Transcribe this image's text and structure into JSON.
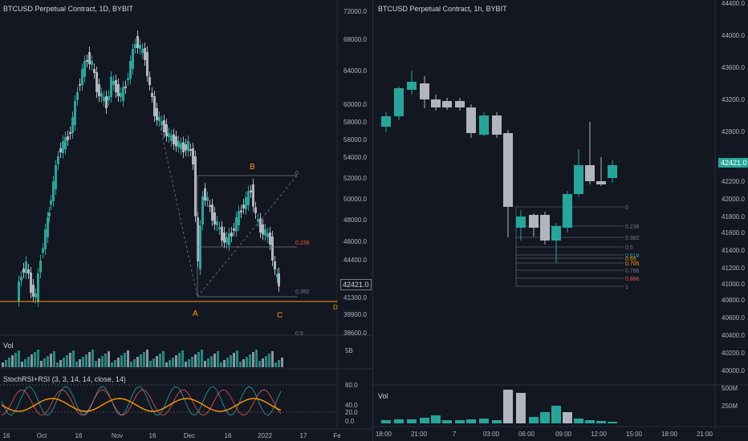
{
  "left_chart": {
    "title": "BTCUSD Perpetual Contract, 1D, BYBIT",
    "price_ticks": [
      "72000.0",
      "68000.0",
      "64000.0",
      "60000.0",
      "58000.0",
      "56000.0",
      "54000.0",
      "52000.0",
      "50000.0",
      "48000.0",
      "46000.0",
      "44400.0",
      "41300.0",
      "39900.0",
      "38600.0"
    ],
    "price_values": [
      72000,
      68000,
      64000,
      60000,
      58000,
      56000,
      54000,
      52000,
      50000,
      48000,
      46000,
      44400,
      41300,
      39900,
      38600
    ],
    "current_price": "42421.0",
    "pattern_labels": {
      "a": "A",
      "b": "B",
      "c": "C",
      "d": "D"
    },
    "fib_labels": {
      "zero": "0",
      "f236": "0.236",
      "f382": "0.382",
      "f5": "0.5"
    },
    "volume_label": "Vol",
    "volume_axis": "5B",
    "indicator_label": "StochRSI+RSI (3, 3, 14, 14, close, 14)",
    "indicator_ticks": [
      "80.0",
      "40.0",
      "20.0",
      "0.0"
    ],
    "time_ticks": [
      "16",
      "Oct",
      "16",
      "Nov",
      "16",
      "Dec",
      "16",
      "2022",
      "17",
      "Fe"
    ],
    "colors": {
      "up": "#26a69a",
      "down": "#b2b5be",
      "orange": "#ff9800",
      "fib": "#787b86"
    }
  },
  "right_chart": {
    "title": "BTCUSD Perpetual Contract, 1h, BYBIT",
    "price_ticks": [
      "44400.0",
      "44000.0",
      "43600.0",
      "43200.0",
      "42800.0",
      "42400.0",
      "42200.0",
      "42000.0",
      "41800.0",
      "41600.0",
      "41400.0",
      "41200.0",
      "41000.0",
      "40800.0",
      "40600.0",
      "40400.0",
      "40200.0",
      "40000.0"
    ],
    "current_price": "42421.0",
    "fib_labels": [
      "0",
      "0.236",
      "0.382",
      "0.5",
      "0.618",
      "0.65",
      "0.705",
      "0.786",
      "0.886",
      "1"
    ],
    "volume_label": "Vol",
    "volume_ticks": [
      "500M",
      "250M"
    ],
    "time_ticks": [
      "18:00",
      "21:00",
      "7",
      "03:00",
      "06:00",
      "09:00",
      "12:00",
      "15:00",
      "18:00",
      "21:00"
    ],
    "colors": {
      "up": "#26a69a",
      "down": "#b2b5be",
      "fib": "#787b86"
    }
  }
}
